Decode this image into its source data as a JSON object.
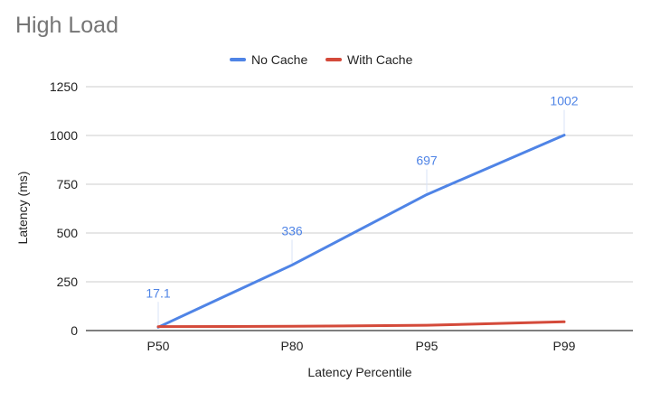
{
  "chart_data": {
    "type": "line",
    "title": "High Load",
    "xlabel": "Latency Percentile",
    "ylabel": "Latency (ms)",
    "categories": [
      "P50",
      "P80",
      "P95",
      "P99"
    ],
    "ylim": [
      0,
      1250
    ],
    "yticks": [
      0,
      250,
      500,
      750,
      1000,
      1250
    ],
    "grid": true,
    "legend_position": "top-center",
    "series": [
      {
        "name": "No Cache",
        "color": "#4f84e6",
        "values": [
          17.1,
          336,
          697,
          1002
        ],
        "data_labels": [
          "17.1",
          "336",
          "697",
          "1002"
        ]
      },
      {
        "name": "With Cache",
        "color": "#d44a3a",
        "values": [
          20,
          22,
          27,
          45
        ]
      }
    ]
  }
}
